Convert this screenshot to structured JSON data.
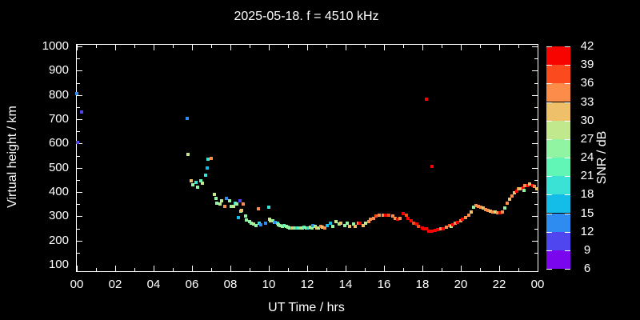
{
  "title": "2025-05-18. f = 4510 kHz",
  "axes": {
    "x_label": "UT Time / hrs",
    "y_label": "Virtual height / km",
    "x_tick_labels": [
      "00",
      "02",
      "04",
      "06",
      "08",
      "10",
      "12",
      "14",
      "16",
      "18",
      "20",
      "22",
      "00"
    ],
    "y_tick_labels": [
      "100",
      "200",
      "300",
      "400",
      "500",
      "600",
      "700",
      "800",
      "900",
      "1000"
    ]
  },
  "colorbar": {
    "label": "SNR / dB",
    "tick_labels": [
      "6",
      "9",
      "12",
      "15",
      "18",
      "21",
      "24",
      "27",
      "30",
      "33",
      "36",
      "39",
      "42"
    ],
    "colors": [
      "#7a06ee",
      "#5046f0",
      "#2e8cf0",
      "#14bce8",
      "#3ae2d6",
      "#62f6b6",
      "#90f4a2",
      "#c2e88e",
      "#eec06a",
      "#fb8c4a",
      "#fb4a1e",
      "#f80400"
    ]
  },
  "colors": {
    "background": "#000000",
    "frame": "#ffffff",
    "text": "#ffffff"
  },
  "chart_data": {
    "type": "scatter",
    "title": "2025-05-18. f = 4510 kHz",
    "xlabel": "UT Time / hrs",
    "ylabel": "Virtual height / km",
    "xlim": [
      0,
      24
    ],
    "ylim": [
      100,
      1000
    ],
    "color_scale": {
      "label": "SNR / dB",
      "min": 6,
      "max": 42,
      "step": 3
    },
    "legend_position": "right-colorbar",
    "grid": false,
    "points_format": [
      "ut_hours",
      "virtual_height_km",
      "snr_db"
    ],
    "points": [
      [
        0.0,
        805,
        13
      ],
      [
        0.05,
        605,
        10
      ],
      [
        0.25,
        730,
        10
      ],
      [
        5.75,
        705,
        13
      ],
      [
        5.8,
        555,
        28
      ],
      [
        5.95,
        445,
        31
      ],
      [
        6.05,
        430,
        25
      ],
      [
        6.2,
        440,
        19
      ],
      [
        6.3,
        420,
        25
      ],
      [
        6.45,
        445,
        22
      ],
      [
        6.55,
        435,
        28
      ],
      [
        6.7,
        470,
        19
      ],
      [
        6.8,
        500,
        16
      ],
      [
        6.85,
        535,
        19
      ],
      [
        7.0,
        540,
        34
      ],
      [
        7.15,
        390,
        28
      ],
      [
        7.25,
        375,
        25
      ],
      [
        7.3,
        355,
        25
      ],
      [
        7.45,
        350,
        28
      ],
      [
        7.55,
        365,
        28
      ],
      [
        7.7,
        340,
        34
      ],
      [
        7.8,
        375,
        13
      ],
      [
        7.95,
        365,
        25
      ],
      [
        8.05,
        340,
        25
      ],
      [
        8.15,
        340,
        28
      ],
      [
        8.25,
        355,
        19
      ],
      [
        8.35,
        350,
        25
      ],
      [
        8.4,
        295,
        16
      ],
      [
        8.5,
        365,
        10
      ],
      [
        8.55,
        322,
        25
      ],
      [
        8.6,
        325,
        31
      ],
      [
        8.65,
        350,
        34
      ],
      [
        8.8,
        300,
        25
      ],
      [
        8.85,
        285,
        25
      ],
      [
        9.0,
        277,
        25
      ],
      [
        9.1,
        273,
        25
      ],
      [
        9.2,
        268,
        28
      ],
      [
        9.35,
        263,
        25
      ],
      [
        9.45,
        330,
        34
      ],
      [
        9.5,
        272,
        19
      ],
      [
        9.6,
        265,
        13
      ],
      [
        9.85,
        272,
        13
      ],
      [
        10.0,
        337,
        19
      ],
      [
        10.05,
        288,
        28
      ],
      [
        10.1,
        283,
        28
      ],
      [
        10.2,
        280,
        25
      ],
      [
        10.3,
        276,
        19
      ],
      [
        10.35,
        274,
        13
      ],
      [
        10.45,
        270,
        19
      ],
      [
        10.5,
        266,
        25
      ],
      [
        10.6,
        262,
        25
      ],
      [
        10.7,
        260,
        25
      ],
      [
        10.8,
        262,
        22
      ],
      [
        10.9,
        258,
        25
      ],
      [
        11.0,
        255,
        25
      ],
      [
        11.1,
        253,
        25
      ],
      [
        11.2,
        253,
        19
      ],
      [
        11.25,
        253,
        31
      ],
      [
        11.35,
        253,
        25
      ],
      [
        11.45,
        252,
        19
      ],
      [
        11.55,
        253,
        22
      ],
      [
        11.65,
        253,
        25
      ],
      [
        11.75,
        253,
        28
      ],
      [
        11.85,
        255,
        22
      ],
      [
        11.95,
        253,
        25
      ],
      [
        12.05,
        253,
        19
      ],
      [
        12.15,
        255,
        28
      ],
      [
        12.25,
        253,
        25
      ],
      [
        12.3,
        262,
        13
      ],
      [
        12.4,
        257,
        25
      ],
      [
        12.5,
        253,
        31
      ],
      [
        12.6,
        253,
        28
      ],
      [
        12.7,
        260,
        34
      ],
      [
        12.8,
        255,
        31
      ],
      [
        12.9,
        253,
        34
      ],
      [
        13.05,
        263,
        16
      ],
      [
        13.2,
        270,
        16
      ],
      [
        13.35,
        260,
        25
      ],
      [
        13.5,
        277,
        28
      ],
      [
        13.65,
        267,
        25
      ],
      [
        13.75,
        273,
        31
      ],
      [
        13.95,
        263,
        25
      ],
      [
        14.1,
        270,
        25
      ],
      [
        14.2,
        260,
        31
      ],
      [
        14.4,
        267,
        25
      ],
      [
        14.5,
        260,
        31
      ],
      [
        14.65,
        270,
        34
      ],
      [
        14.75,
        273,
        40
      ],
      [
        14.9,
        263,
        31
      ],
      [
        15.05,
        270,
        28
      ],
      [
        15.2,
        277,
        34
      ],
      [
        15.3,
        287,
        34
      ],
      [
        15.45,
        293,
        34
      ],
      [
        15.6,
        300,
        37
      ],
      [
        15.75,
        303,
        34
      ],
      [
        15.95,
        303,
        34
      ],
      [
        16.1,
        303,
        40
      ],
      [
        16.25,
        303,
        37
      ],
      [
        16.45,
        300,
        34
      ],
      [
        16.6,
        293,
        34
      ],
      [
        16.7,
        287,
        40
      ],
      [
        16.85,
        290,
        34
      ],
      [
        17.0,
        310,
        40
      ],
      [
        17.15,
        303,
        37
      ],
      [
        17.25,
        290,
        40
      ],
      [
        17.4,
        280,
        40
      ],
      [
        17.55,
        273,
        37
      ],
      [
        17.7,
        267,
        40
      ],
      [
        17.8,
        260,
        37
      ],
      [
        18.0,
        253,
        40
      ],
      [
        18.1,
        250,
        40
      ],
      [
        18.2,
        247,
        40
      ],
      [
        18.2,
        783,
        40
      ],
      [
        18.5,
        505,
        40
      ],
      [
        18.35,
        240,
        40
      ],
      [
        18.5,
        237,
        40
      ],
      [
        18.65,
        243,
        40
      ],
      [
        18.8,
        245,
        40
      ],
      [
        18.95,
        250,
        34
      ],
      [
        19.1,
        248,
        40
      ],
      [
        19.25,
        255,
        34
      ],
      [
        19.4,
        262,
        37
      ],
      [
        19.5,
        260,
        28
      ],
      [
        19.6,
        265,
        40
      ],
      [
        19.7,
        272,
        34
      ],
      [
        19.85,
        275,
        40
      ],
      [
        20.0,
        282,
        34
      ],
      [
        20.1,
        288,
        40
      ],
      [
        20.25,
        295,
        34
      ],
      [
        20.4,
        305,
        34
      ],
      [
        20.55,
        318,
        31
      ],
      [
        20.65,
        338,
        25
      ],
      [
        20.8,
        345,
        34
      ],
      [
        20.9,
        342,
        34
      ],
      [
        21.05,
        338,
        34
      ],
      [
        21.15,
        335,
        31
      ],
      [
        21.3,
        328,
        34
      ],
      [
        21.4,
        325,
        34
      ],
      [
        21.55,
        322,
        31
      ],
      [
        21.65,
        318,
        34
      ],
      [
        21.8,
        318,
        28
      ],
      [
        21.9,
        315,
        34
      ],
      [
        22.05,
        315,
        40
      ],
      [
        22.15,
        318,
        34
      ],
      [
        22.3,
        335,
        25
      ],
      [
        22.4,
        355,
        34
      ],
      [
        22.55,
        372,
        31
      ],
      [
        22.65,
        385,
        34
      ],
      [
        22.8,
        398,
        31
      ],
      [
        22.9,
        405,
        40
      ],
      [
        23.0,
        412,
        34
      ],
      [
        23.1,
        415,
        31
      ],
      [
        23.25,
        418,
        40
      ],
      [
        23.3,
        408,
        25
      ],
      [
        23.35,
        425,
        34
      ],
      [
        23.5,
        428,
        40
      ],
      [
        23.6,
        432,
        31
      ],
      [
        23.75,
        428,
        40
      ],
      [
        23.85,
        422,
        34
      ],
      [
        23.95,
        415,
        31
      ]
    ]
  }
}
